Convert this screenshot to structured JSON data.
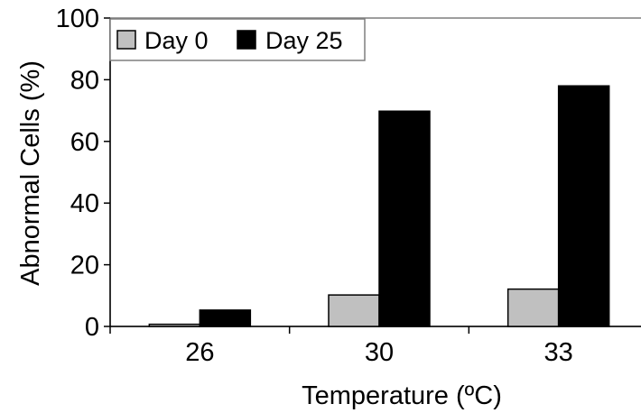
{
  "chart_data": {
    "type": "bar",
    "categories": [
      "26",
      "30",
      "33"
    ],
    "series": [
      {
        "name": "Day 0",
        "values": [
          0.7,
          10.2,
          12.1
        ],
        "color": "#c0c0c0"
      },
      {
        "name": "Day 25",
        "values": [
          5.3,
          69.8,
          78.0
        ],
        "color": "#000000"
      }
    ],
    "xlabel": "Temperature (ºC)",
    "ylabel": "Abnormal Cells (%)",
    "ylim": [
      0,
      100
    ],
    "yticks": [
      0,
      20,
      40,
      60,
      80,
      100
    ],
    "legend_position": "top-left",
    "grid": false
  }
}
